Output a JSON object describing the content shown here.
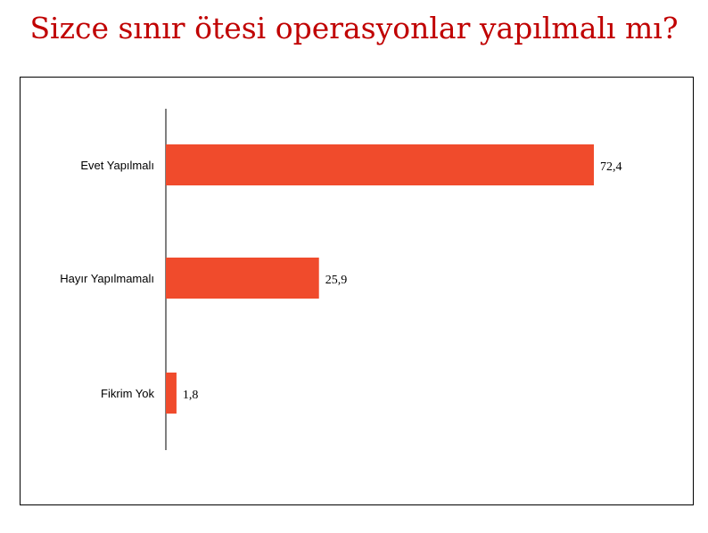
{
  "title": "Sizce sınır ötesi operasyonlar yapılmalı mı?",
  "chart_data": {
    "type": "bar",
    "orientation": "horizontal",
    "title": "Sizce sınır ötesi operasyonlar yapılmalı mı?",
    "categories": [
      "Evet Yapılmalı",
      "Hayır Yapılmamalı",
      "Fikrim Yok"
    ],
    "values": [
      72.4,
      25.9,
      1.8
    ],
    "value_labels": [
      "72,4",
      "25,9",
      "1,8"
    ],
    "xlim": [
      0,
      80
    ],
    "grid": false,
    "legend": "none",
    "bar_color": "#f04b2c"
  }
}
